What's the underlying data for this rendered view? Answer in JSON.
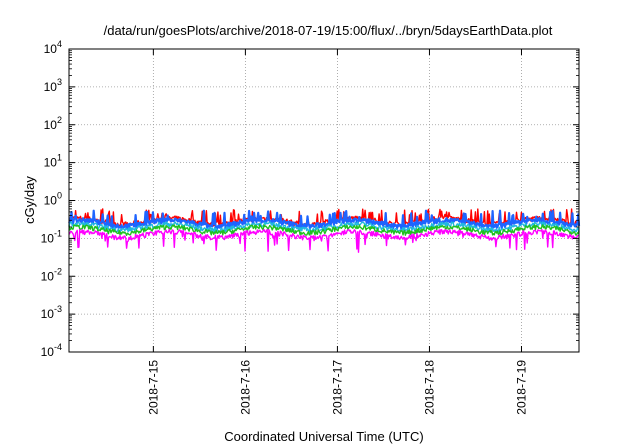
{
  "chart_data": {
    "type": "line",
    "title": "/data/run/goesPlots/archive/2018-07-19/15:00/flux/../bryn/5daysEarthData.plot",
    "xlabel": "Coordinated Universal Time (UTC)",
    "ylabel": "cGy/day",
    "y_scale": "log",
    "ylim": [
      0.0001,
      10000
    ],
    "y_ticks": [
      {
        "base": "10",
        "exp": "4"
      },
      {
        "base": "10",
        "exp": "3"
      },
      {
        "base": "10",
        "exp": "2"
      },
      {
        "base": "10",
        "exp": "1"
      },
      {
        "base": "10",
        "exp": "0"
      },
      {
        "base": "10",
        "exp": "-1"
      },
      {
        "base": "10",
        "exp": "-2"
      },
      {
        "base": "10",
        "exp": "-3"
      },
      {
        "base": "10",
        "exp": "-4"
      }
    ],
    "xlim": [
      "2018-07-14 02:00",
      "2018-07-19 15:00"
    ],
    "x_ticks": [
      "2018-7-15",
      "2018-7-16",
      "2018-7-17",
      "2018-7-18",
      "2018-7-19"
    ],
    "grid": true,
    "legend": "none",
    "series_summary": [
      {
        "color": "#ff0000",
        "typical": 0.34,
        "peaks": 0.5
      },
      {
        "color": "#1e64ff",
        "typical": 0.3,
        "peaks": 0.45
      },
      {
        "color": "#20b8e0",
        "typical": 0.24,
        "peaks": 0.3
      },
      {
        "color": "#20c020",
        "typical": 0.2,
        "peaks": 0.25
      },
      {
        "color": "#ff00ff",
        "typical": 0.15,
        "peaks": 0.04
      }
    ]
  }
}
